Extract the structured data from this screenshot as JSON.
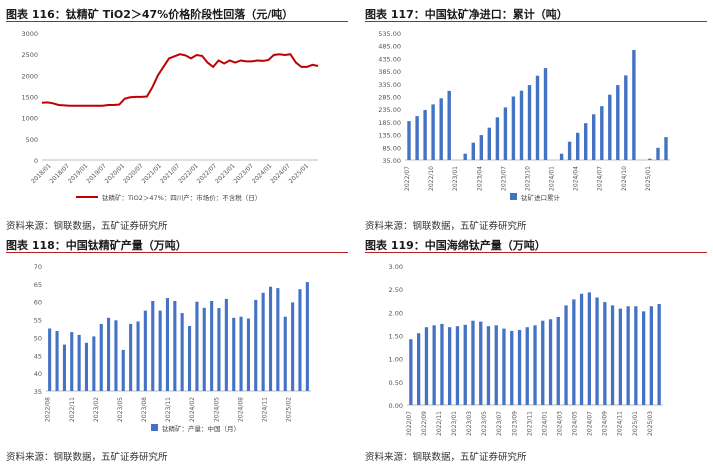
{
  "panels": {
    "p116": {
      "title": "图表 116：钛精矿 TiO2＞47%价格阶段性回落（元/吨）",
      "source": "资料来源：钢联数据，五矿证券研究所"
    },
    "p117": {
      "title": "图表 117：中国钛矿净进口：累计（吨）",
      "source": "资料来源：钢联数据，五矿证券研究所"
    },
    "p118": {
      "title": "图表 118：中国钛精矿产量（万吨）",
      "source": "资料来源：钢联数据，五矿证券研究所"
    },
    "p119": {
      "title": "图表 119：中国海绵钛产量（万吨）",
      "source": "资料来源：钢联数据，五矿证券研究所"
    }
  },
  "chart_data": [
    {
      "id": "c116",
      "type": "line",
      "color": "#c00000",
      "y_ticks": [
        "0",
        "500",
        "1000",
        "1500",
        "2000",
        "2500",
        "3000"
      ],
      "ylim": [
        0,
        3000
      ],
      "x_tick_labels": [
        "2018/01",
        "2018/07",
        "2019/01",
        "2019/07",
        "2020/01",
        "2020/07",
        "2021/01",
        "2021/07",
        "2022/01",
        "2022/07",
        "2023/01",
        "2023/07",
        "2024/01",
        "2024/07",
        "2025/01"
      ],
      "series": [
        {
          "name": "钛精矿：TiO2＞47%：四川产：市场价：不含税（日）",
          "values": [
            1350,
            1360,
            1340,
            1300,
            1290,
            1280,
            1280,
            1280,
            1280,
            1280,
            1280,
            1280,
            1300,
            1300,
            1310,
            1450,
            1480,
            1490,
            1490,
            1500,
            1720,
            2000,
            2200,
            2400,
            2450,
            2500,
            2470,
            2400,
            2480,
            2460,
            2300,
            2200,
            2350,
            2280,
            2350,
            2300,
            2350,
            2330,
            2330,
            2350,
            2340,
            2360,
            2480,
            2500,
            2480,
            2500,
            2300,
            2200,
            2200,
            2250,
            2220
          ]
        }
      ]
    },
    {
      "id": "c117",
      "type": "bar",
      "color": "#4472c4",
      "y_ticks": [
        "35.00",
        "85.00",
        "135.00",
        "185.00",
        "235.00",
        "285.00",
        "335.00",
        "385.00",
        "435.00",
        "485.00",
        "535.00"
      ],
      "ylim": [
        35,
        535
      ],
      "x_tick_labels": [
        "2022/07",
        "2022/10",
        "2023/01",
        "2023/04",
        "2023/07",
        "2023/10",
        "2024/01",
        "2024/04",
        "2024/07",
        "2024/10",
        "2025/01"
      ],
      "legend": "钛矿进口累计",
      "values": [
        188,
        208,
        232,
        254,
        278,
        307,
        null,
        60,
        103,
        133,
        162,
        203,
        242,
        285,
        308,
        330,
        367,
        397,
        null,
        60,
        107,
        142,
        180,
        215,
        247,
        292,
        330,
        368,
        468,
        null,
        40,
        83,
        125
      ]
    },
    {
      "id": "c118",
      "type": "bar",
      "color": "#4472c4",
      "y_ticks": [
        "35",
        "40",
        "45",
        "50",
        "55",
        "60",
        "65",
        "70"
      ],
      "ylim": [
        35,
        70
      ],
      "x_tick_labels": [
        "2022/08",
        "2022/11",
        "2023/02",
        "2023/05",
        "2023/08",
        "2023/11",
        "2024/02",
        "2024/05",
        "2024/08",
        "2024/11",
        "2025/02"
      ],
      "legend": "钛精矿：产量：中国（月）",
      "values": [
        52.5,
        51.8,
        48,
        51.5,
        50.7,
        48.5,
        50.3,
        53.8,
        55.5,
        54.8,
        46.5,
        53.8,
        54.5,
        57.5,
        60.2,
        57.5,
        61,
        60.2,
        56.8,
        53.2,
        60,
        58.3,
        60.2,
        58.2,
        60.8,
        55.5,
        55.8,
        55.3,
        60.5,
        62.5,
        64.2,
        63.8,
        55.8,
        59.8,
        63.5,
        65.5
      ]
    },
    {
      "id": "c119",
      "type": "bar",
      "color": "#4472c4",
      "y_ticks": [
        "0.00",
        "0.50",
        "1.00",
        "1.50",
        "2.00",
        "2.50",
        "3.00"
      ],
      "ylim": [
        0,
        3
      ],
      "x_tick_labels": [
        "2022/07",
        "2022/09",
        "2022/11",
        "2023/01",
        "2023/03",
        "2023/05",
        "2023/07",
        "2023/09",
        "2023/11",
        "2024/01",
        "2024/03",
        "2024/05",
        "2024/07",
        "2024/09",
        "2024/11",
        "2025/01",
        "2025/03"
      ],
      "values": [
        1.42,
        1.55,
        1.68,
        1.72,
        1.75,
        1.68,
        1.7,
        1.73,
        1.82,
        1.8,
        1.7,
        1.72,
        1.65,
        1.6,
        1.62,
        1.68,
        1.72,
        1.82,
        1.85,
        1.9,
        2.15,
        2.28,
        2.4,
        2.43,
        2.32,
        2.22,
        2.15,
        2.08,
        2.13,
        2.13,
        2.02,
        2.13,
        2.18
      ]
    }
  ]
}
